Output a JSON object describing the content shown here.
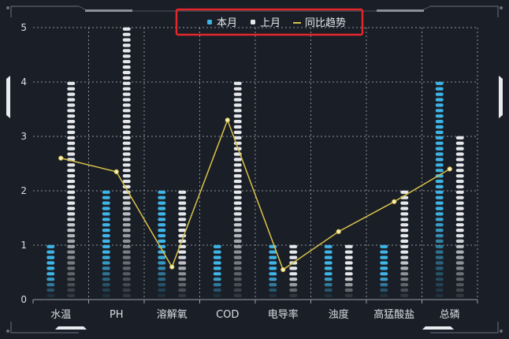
{
  "chart_data": {
    "type": "bar",
    "categories": [
      "水温",
      "PH",
      "溶解氧",
      "COD",
      "电导率",
      "浊度",
      "高猛酸盐",
      "总磷"
    ],
    "series": [
      {
        "name": "本月",
        "kind": "bar",
        "color": "#3fb4e6",
        "values": [
          1,
          2,
          2,
          1,
          1,
          1,
          1,
          4
        ]
      },
      {
        "name": "上月",
        "kind": "bar",
        "color": "#e6e8ec",
        "values": [
          4,
          5,
          2,
          4,
          1,
          1,
          2,
          3
        ]
      },
      {
        "name": "同比趋势",
        "kind": "line",
        "color": "#d9c24a",
        "values": [
          2.6,
          2.35,
          0.6,
          3.3,
          0.55,
          1.25,
          1.8,
          2.4
        ]
      }
    ],
    "ylim": [
      0,
      5
    ],
    "yticks": [
      0,
      1,
      2,
      3,
      4,
      5
    ],
    "grid": true,
    "legend_position": "top-center"
  }
}
